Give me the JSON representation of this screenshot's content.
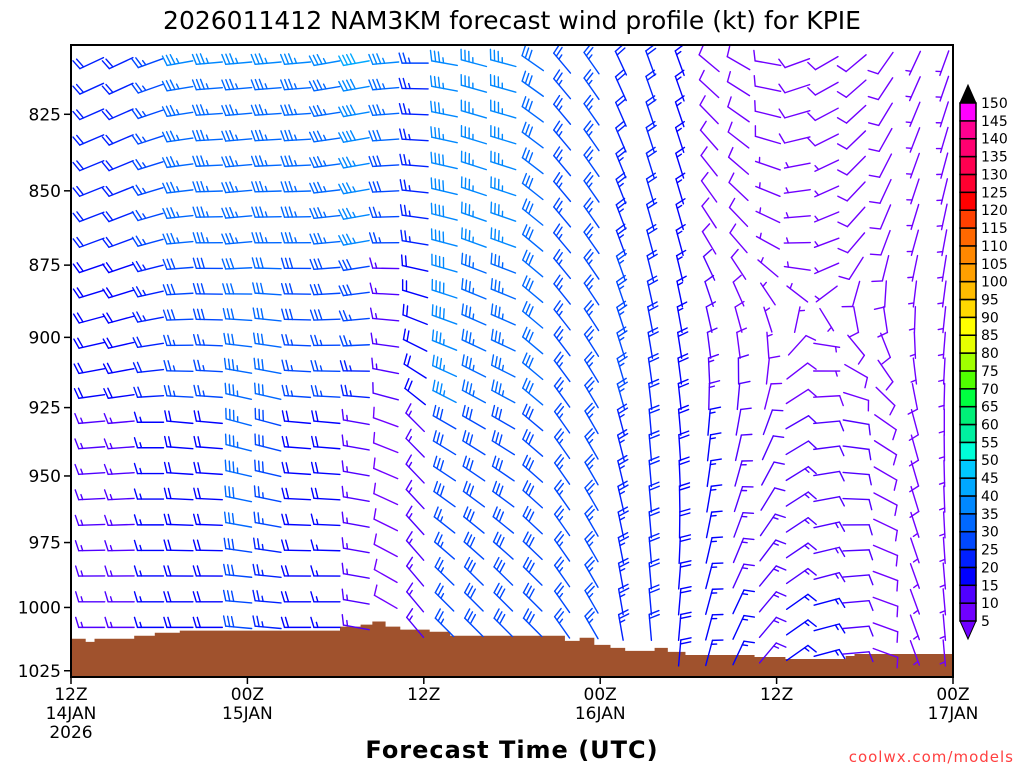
{
  "chart_data": {
    "type": "wind-barb-profile",
    "title": "2026011412 NAM3KM forecast wind profile (kt) for KPIE",
    "xlabel": "Forecast Time (UTC)",
    "ylabel": "",
    "credit": "coolwx.com/models",
    "x_range_hours": [
      0,
      60
    ],
    "y_range_hPa": [
      803,
      1027.5
    ],
    "y_scale": "log",
    "y_ticks": [
      {
        "value": 825,
        "label": "825"
      },
      {
        "value": 850,
        "label": "850"
      },
      {
        "value": 875,
        "label": "875"
      },
      {
        "value": 900,
        "label": "900"
      },
      {
        "value": 925,
        "label": "925"
      },
      {
        "value": 950,
        "label": "950"
      },
      {
        "value": 975,
        "label": "975"
      },
      {
        "value": 1000,
        "label": "1000"
      },
      {
        "value": 1025,
        "label": "1025"
      }
    ],
    "x_ticks": [
      {
        "hour": 0,
        "lines": [
          "12Z",
          "14JAN",
          "2026"
        ]
      },
      {
        "hour": 12,
        "lines": [
          "00Z",
          "15JAN"
        ]
      },
      {
        "hour": 24,
        "lines": [
          "12Z"
        ]
      },
      {
        "hour": 36,
        "lines": [
          "00Z",
          "16JAN"
        ]
      },
      {
        "hour": 48,
        "lines": [
          "12Z"
        ]
      },
      {
        "hour": 60,
        "lines": [
          "00Z",
          "17JAN"
        ]
      }
    ],
    "colorbar": {
      "units": "kt",
      "levels": [
        5,
        10,
        15,
        20,
        25,
        30,
        35,
        40,
        45,
        50,
        55,
        60,
        65,
        70,
        75,
        80,
        85,
        90,
        95,
        100,
        105,
        110,
        115,
        120,
        125,
        130,
        135,
        140,
        145,
        150
      ],
      "colors": [
        "#7000ff",
        "#5000ff",
        "#0000ff",
        "#0020ff",
        "#0048ff",
        "#0068ff",
        "#0088ff",
        "#00a8ff",
        "#00c8ff",
        "#00ffd8",
        "#00f0a0",
        "#00f078",
        "#00ff40",
        "#50ff00",
        "#a0ff00",
        "#e6ff00",
        "#ffff00",
        "#ffd800",
        "#ffbc00",
        "#ffa000",
        "#ff8800",
        "#ff6800",
        "#ff4000",
        "#ff0000",
        "#ff0030",
        "#ff0050",
        "#ff0070",
        "#ff0090",
        "#ff00ff"
      ],
      "under_color": "#7000ff",
      "over_color": "#000000"
    },
    "terrain_color": "#a0522d",
    "surface_pressure_steps": [
      [
        0,
        1012.3
      ],
      [
        1,
        1013.5
      ],
      [
        1.6,
        1012.3
      ],
      [
        4.3,
        1011.1
      ],
      [
        5.7,
        1009.9
      ],
      [
        7.4,
        1009.1
      ],
      [
        18.3,
        1007.5
      ],
      [
        19.7,
        1006.7
      ],
      [
        20.5,
        1005.5
      ],
      [
        21.4,
        1007.5
      ],
      [
        22.4,
        1008.7
      ],
      [
        24.4,
        1009.5
      ],
      [
        25.8,
        1011.1
      ],
      [
        33.6,
        1013.1
      ],
      [
        34.6,
        1011.9
      ],
      [
        35.6,
        1014.7
      ],
      [
        36.7,
        1015.9
      ],
      [
        37.7,
        1017.1
      ],
      [
        39.7,
        1015.9
      ],
      [
        40.6,
        1017.5
      ],
      [
        41.8,
        1018.7
      ],
      [
        46.5,
        1019.5
      ],
      [
        48.6,
        1020.3
      ],
      [
        52.7,
        1019.1
      ],
      [
        53.3,
        1018.3
      ]
    ],
    "levels_hPa": [
      808.7,
      816.8,
      825.0,
      833.3,
      841.7,
      850.2,
      858.7,
      867.4,
      876.1,
      884.9,
      893.8,
      902.8,
      911.9,
      921.0,
      930.3,
      939.6,
      949.1,
      958.6,
      968.3,
      978.0,
      987.8,
      997.8,
      1007.8,
      1017.9
    ],
    "profile_anchor_hPa": [
      810,
      870,
      930,
      990
    ],
    "wind_columns": [
      {
        "hour": 1,
        "dir_spd": [
          [
            245,
            20
          ],
          [
            250,
            20
          ],
          [
            265,
            15
          ],
          [
            270,
            12
          ]
        ]
      },
      {
        "hour": 3,
        "dir_spd": [
          [
            245,
            20
          ],
          [
            250,
            20
          ],
          [
            265,
            15
          ],
          [
            270,
            12
          ]
        ]
      },
      {
        "hour": 5,
        "dir_spd": [
          [
            250,
            25
          ],
          [
            255,
            25
          ],
          [
            270,
            15
          ],
          [
            270,
            15
          ]
        ]
      },
      {
        "hour": 7,
        "dir_spd": [
          [
            260,
            35
          ],
          [
            265,
            30
          ],
          [
            275,
            20
          ],
          [
            270,
            15
          ]
        ]
      },
      {
        "hour": 9,
        "dir_spd": [
          [
            265,
            35
          ],
          [
            270,
            30
          ],
          [
            275,
            20
          ],
          [
            270,
            15
          ]
        ]
      },
      {
        "hour": 11,
        "dir_spd": [
          [
            265,
            35
          ],
          [
            265,
            30
          ],
          [
            285,
            35
          ],
          [
            275,
            20
          ]
        ]
      },
      {
        "hour": 13,
        "dir_spd": [
          [
            265,
            35
          ],
          [
            270,
            30
          ],
          [
            285,
            30
          ],
          [
            275,
            15
          ]
        ]
      },
      {
        "hour": 15,
        "dir_spd": [
          [
            265,
            35
          ],
          [
            270,
            30
          ],
          [
            275,
            20
          ],
          [
            270,
            15
          ]
        ]
      },
      {
        "hour": 17,
        "dir_spd": [
          [
            260,
            35
          ],
          [
            265,
            30
          ],
          [
            275,
            20
          ],
          [
            270,
            12
          ]
        ]
      },
      {
        "hour": 19,
        "dir_spd": [
          [
            260,
            40
          ],
          [
            260,
            30
          ],
          [
            280,
            15
          ],
          [
            280,
            10
          ]
        ]
      },
      {
        "hour": 21,
        "dir_spd": [
          [
            265,
            35
          ],
          [
            270,
            15
          ],
          [
            290,
            8
          ],
          [
            300,
            8
          ]
        ]
      },
      {
        "hour": 23,
        "dir_spd": [
          [
            270,
            25
          ],
          [
            280,
            20
          ],
          [
            315,
            15
          ],
          [
            320,
            12
          ]
        ]
      },
      {
        "hour": 25,
        "dir_spd": [
          [
            280,
            35
          ],
          [
            285,
            40
          ],
          [
            300,
            30
          ],
          [
            315,
            20
          ]
        ]
      },
      {
        "hour": 27,
        "dir_spd": [
          [
            285,
            35
          ],
          [
            290,
            35
          ],
          [
            300,
            30
          ],
          [
            315,
            25
          ]
        ]
      },
      {
        "hour": 29,
        "dir_spd": [
          [
            285,
            35
          ],
          [
            290,
            35
          ],
          [
            300,
            30
          ],
          [
            315,
            25
          ]
        ]
      },
      {
        "hour": 31,
        "dir_spd": [
          [
            305,
            30
          ],
          [
            310,
            30
          ],
          [
            310,
            30
          ],
          [
            315,
            25
          ]
        ]
      },
      {
        "hour": 33,
        "dir_spd": [
          [
            320,
            25
          ],
          [
            320,
            25
          ],
          [
            325,
            25
          ],
          [
            325,
            25
          ]
        ]
      },
      {
        "hour": 35,
        "dir_spd": [
          [
            325,
            25
          ],
          [
            325,
            25
          ],
          [
            330,
            25
          ],
          [
            330,
            25
          ]
        ]
      },
      {
        "hour": 37,
        "dir_spd": [
          [
            335,
            20
          ],
          [
            340,
            25
          ],
          [
            345,
            25
          ],
          [
            350,
            20
          ]
        ]
      },
      {
        "hour": 39,
        "dir_spd": [
          [
            340,
            20
          ],
          [
            345,
            20
          ],
          [
            355,
            20
          ],
          [
            355,
            20
          ]
        ]
      },
      {
        "hour": 41,
        "dir_spd": [
          [
            340,
            15
          ],
          [
            345,
            15
          ],
          [
            355,
            20
          ],
          [
            5,
            15
          ]
        ]
      },
      {
        "hour": 43,
        "dir_spd": [
          [
            310,
            8
          ],
          [
            330,
            10
          ],
          [
            5,
            15
          ],
          [
            15,
            15
          ]
        ]
      },
      {
        "hour": 45,
        "dir_spd": [
          [
            300,
            8
          ],
          [
            320,
            8
          ],
          [
            10,
            12
          ],
          [
            25,
            15
          ]
        ]
      },
      {
        "hour": 47,
        "dir_spd": [
          [
            280,
            8
          ],
          [
            300,
            6
          ],
          [
            20,
            10
          ],
          [
            40,
            15
          ]
        ]
      },
      {
        "hour": 49,
        "dir_spd": [
          [
            250,
            8
          ],
          [
            270,
            6
          ],
          [
            60,
            12
          ],
          [
            55,
            15
          ]
        ]
      },
      {
        "hour": 51,
        "dir_spd": [
          [
            240,
            8
          ],
          [
            250,
            6
          ],
          [
            85,
            10
          ],
          [
            75,
            15
          ]
        ]
      },
      {
        "hour": 53,
        "dir_spd": [
          [
            230,
            8
          ],
          [
            220,
            8
          ],
          [
            100,
            10
          ],
          [
            85,
            12
          ]
        ]
      },
      {
        "hour": 55,
        "dir_spd": [
          [
            215,
            8
          ],
          [
            200,
            8
          ],
          [
            125,
            8
          ],
          [
            110,
            8
          ]
        ]
      },
      {
        "hour": 57,
        "dir_spd": [
          [
            205,
            7
          ],
          [
            195,
            7
          ],
          [
            165,
            8
          ],
          [
            160,
            6
          ]
        ]
      },
      {
        "hour": 59,
        "dir_spd": [
          [
            200,
            7
          ],
          [
            190,
            6
          ],
          [
            180,
            6
          ],
          [
            175,
            5
          ]
        ]
      }
    ]
  }
}
